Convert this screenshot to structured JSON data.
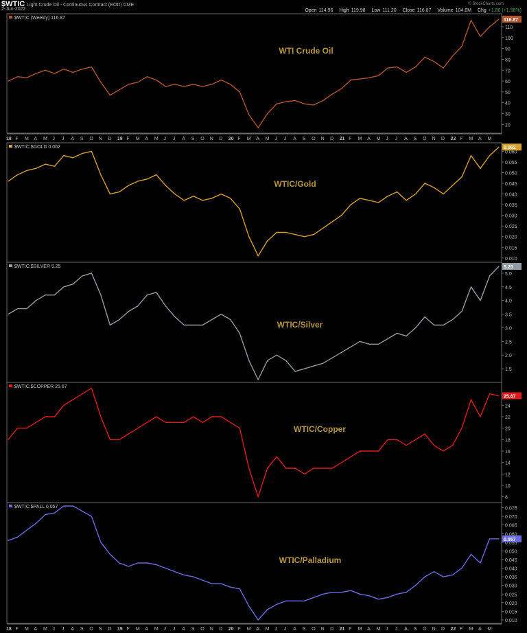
{
  "header": {
    "symbol": "$WTIC",
    "description": "Light Crude Oil - Continuous Contract (EOD)",
    "exchange": "CME",
    "date": "2-Jun-2022",
    "brand": "© StockCharts.com",
    "open_label": "Open",
    "open": "114.96",
    "high_label": "High",
    "high": "119.98",
    "low_label": "Low",
    "low": "111.20",
    "close_label": "Close",
    "close": "116.87",
    "volume_label": "Volume",
    "volume": "104.6M",
    "chg_label": "Chg",
    "chg": "+1.80 (+1.56%)"
  },
  "colors": {
    "background": "#000000",
    "border": "#6e6e6e",
    "tick_text": "#bdbdbd",
    "annotation": "#b8963c"
  },
  "x_axis_labels": [
    "18",
    "F",
    "M",
    "A",
    "M",
    "J",
    "J",
    "A",
    "S",
    "O",
    "N",
    "D",
    "19",
    "F",
    "M",
    "A",
    "M",
    "J",
    "J",
    "A",
    "S",
    "O",
    "N",
    "D",
    "20",
    "F",
    "M",
    "A",
    "M",
    "J",
    "J",
    "A",
    "S",
    "O",
    "N",
    "D",
    "21",
    "F",
    "M",
    "A",
    "M",
    "J",
    "J",
    "A",
    "S",
    "O",
    "N",
    "D",
    "22",
    "F",
    "M",
    "A",
    "M"
  ],
  "chart_data": [
    {
      "type": "line",
      "legend": "$WTIC (Weekly) 116.87",
      "annotation": "WTI Crude Oil",
      "last_value": "116.87",
      "color": "#b3552d",
      "ylim": [
        12,
        122
      ],
      "yticks": [
        "110",
        "100",
        "90",
        "80",
        "70",
        "60",
        "50",
        "40",
        "30",
        "20"
      ],
      "ytick_values": [
        110,
        100,
        90,
        80,
        70,
        60,
        50,
        40,
        30,
        20
      ],
      "x": [
        "2018-01",
        "2018-02",
        "2018-03",
        "2018-04",
        "2018-05",
        "2018-06",
        "2018-07",
        "2018-08",
        "2018-09",
        "2018-10",
        "2018-11",
        "2018-12",
        "2019-01",
        "2019-02",
        "2019-03",
        "2019-04",
        "2019-05",
        "2019-06",
        "2019-07",
        "2019-08",
        "2019-09",
        "2019-10",
        "2019-11",
        "2019-12",
        "2020-01",
        "2020-02",
        "2020-03",
        "2020-04",
        "2020-05",
        "2020-06",
        "2020-07",
        "2020-08",
        "2020-09",
        "2020-10",
        "2020-11",
        "2020-12",
        "2021-01",
        "2021-02",
        "2021-03",
        "2021-04",
        "2021-05",
        "2021-06",
        "2021-07",
        "2021-08",
        "2021-09",
        "2021-10",
        "2021-11",
        "2021-12",
        "2022-01",
        "2022-02",
        "2022-03",
        "2022-04",
        "2022-05",
        "2022-06"
      ],
      "values": [
        60,
        64,
        63,
        67,
        70,
        67,
        71,
        68,
        71,
        73,
        59,
        47,
        52,
        57,
        59,
        64,
        61,
        55,
        57,
        55,
        57,
        55,
        57,
        61,
        57,
        50,
        29,
        17,
        30,
        39,
        41,
        42,
        39,
        38,
        42,
        48,
        53,
        61,
        62,
        63,
        65,
        72,
        73,
        68,
        73,
        82,
        78,
        72,
        83,
        92,
        116,
        101,
        110,
        117
      ]
    },
    {
      "type": "line",
      "legend": "$WTIC:$GOLD 0.062",
      "annotation": "WTIC/Gold",
      "last_value": "0.062",
      "color": "#d8a12b",
      "ylim": [
        0.008,
        0.064
      ],
      "yticks": [
        "0.060",
        "0.055",
        "0.050",
        "0.045",
        "0.040",
        "0.035",
        "0.030",
        "0.025",
        "0.020",
        "0.015",
        "0.010"
      ],
      "ytick_values": [
        0.06,
        0.055,
        0.05,
        0.045,
        0.04,
        0.035,
        0.03,
        0.025,
        0.02,
        0.015,
        0.01
      ],
      "x": [
        "2018-01",
        "2018-02",
        "2018-03",
        "2018-04",
        "2018-05",
        "2018-06",
        "2018-07",
        "2018-08",
        "2018-09",
        "2018-10",
        "2018-11",
        "2018-12",
        "2019-01",
        "2019-02",
        "2019-03",
        "2019-04",
        "2019-05",
        "2019-06",
        "2019-07",
        "2019-08",
        "2019-09",
        "2019-10",
        "2019-11",
        "2019-12",
        "2020-01",
        "2020-02",
        "2020-03",
        "2020-04",
        "2020-05",
        "2020-06",
        "2020-07",
        "2020-08",
        "2020-09",
        "2020-10",
        "2020-11",
        "2020-12",
        "2021-01",
        "2021-02",
        "2021-03",
        "2021-04",
        "2021-05",
        "2021-06",
        "2021-07",
        "2021-08",
        "2021-09",
        "2021-10",
        "2021-11",
        "2021-12",
        "2022-01",
        "2022-02",
        "2022-03",
        "2022-04",
        "2022-05",
        "2022-06"
      ],
      "values": [
        0.046,
        0.049,
        0.051,
        0.052,
        0.054,
        0.053,
        0.058,
        0.057,
        0.059,
        0.06,
        0.049,
        0.04,
        0.041,
        0.044,
        0.046,
        0.047,
        0.049,
        0.044,
        0.04,
        0.037,
        0.039,
        0.037,
        0.038,
        0.04,
        0.038,
        0.033,
        0.02,
        0.011,
        0.018,
        0.022,
        0.022,
        0.021,
        0.02,
        0.021,
        0.024,
        0.027,
        0.03,
        0.035,
        0.038,
        0.037,
        0.036,
        0.039,
        0.041,
        0.037,
        0.04,
        0.045,
        0.043,
        0.04,
        0.044,
        0.048,
        0.058,
        0.052,
        0.058,
        0.062
      ]
    },
    {
      "type": "line",
      "legend": "$WTIC:$SILVER 5.25",
      "annotation": "WTIC/Silver",
      "last_value": "5.25",
      "color": "#8f9da3",
      "ylim": [
        1.0,
        5.4
      ],
      "yticks": [
        "5.0",
        "4.5",
        "4.0",
        "3.5",
        "3.0",
        "2.5",
        "2.0",
        "1.5"
      ],
      "ytick_values": [
        5.0,
        4.5,
        4.0,
        3.5,
        3.0,
        2.5,
        2.0,
        1.5
      ],
      "x": [
        "2018-01",
        "2018-02",
        "2018-03",
        "2018-04",
        "2018-05",
        "2018-06",
        "2018-07",
        "2018-08",
        "2018-09",
        "2018-10",
        "2018-11",
        "2018-12",
        "2019-01",
        "2019-02",
        "2019-03",
        "2019-04",
        "2019-05",
        "2019-06",
        "2019-07",
        "2019-08",
        "2019-09",
        "2019-10",
        "2019-11",
        "2019-12",
        "2020-01",
        "2020-02",
        "2020-03",
        "2020-04",
        "2020-05",
        "2020-06",
        "2020-07",
        "2020-08",
        "2020-09",
        "2020-10",
        "2020-11",
        "2020-12",
        "2021-01",
        "2021-02",
        "2021-03",
        "2021-04",
        "2021-05",
        "2021-06",
        "2021-07",
        "2021-08",
        "2021-09",
        "2021-10",
        "2021-11",
        "2021-12",
        "2022-01",
        "2022-02",
        "2022-03",
        "2022-04",
        "2022-05",
        "2022-06"
      ],
      "values": [
        3.5,
        3.7,
        3.7,
        4.0,
        4.2,
        4.2,
        4.5,
        4.6,
        4.9,
        5.0,
        4.2,
        3.1,
        3.3,
        3.6,
        3.8,
        4.2,
        4.3,
        3.8,
        3.4,
        3.1,
        3.1,
        3.1,
        3.3,
        3.5,
        3.3,
        2.8,
        1.8,
        1.1,
        1.8,
        2.0,
        1.8,
        1.4,
        1.5,
        1.6,
        1.7,
        1.9,
        2.1,
        2.3,
        2.5,
        2.4,
        2.4,
        2.6,
        2.8,
        2.7,
        3.0,
        3.4,
        3.1,
        3.1,
        3.3,
        3.6,
        4.5,
        4.0,
        4.9,
        5.25
      ]
    },
    {
      "type": "line",
      "legend": "$WTIC:$COPPER 25.67",
      "annotation": "WTIC/Copper",
      "last_value": "25.67",
      "color": "#e01b1b",
      "ylim": [
        7,
        28
      ],
      "yticks": [
        "24",
        "22",
        "20",
        "18",
        "16",
        "14",
        "12",
        "10",
        "8"
      ],
      "ytick_values": [
        24,
        22,
        20,
        18,
        16,
        14,
        12,
        10,
        8
      ],
      "x": [
        "2018-01",
        "2018-02",
        "2018-03",
        "2018-04",
        "2018-05",
        "2018-06",
        "2018-07",
        "2018-08",
        "2018-09",
        "2018-10",
        "2018-11",
        "2018-12",
        "2019-01",
        "2019-02",
        "2019-03",
        "2019-04",
        "2019-05",
        "2019-06",
        "2019-07",
        "2019-08",
        "2019-09",
        "2019-10",
        "2019-11",
        "2019-12",
        "2020-01",
        "2020-02",
        "2020-03",
        "2020-04",
        "2020-05",
        "2020-06",
        "2020-07",
        "2020-08",
        "2020-09",
        "2020-10",
        "2020-11",
        "2020-12",
        "2021-01",
        "2021-02",
        "2021-03",
        "2021-04",
        "2021-05",
        "2021-06",
        "2021-07",
        "2021-08",
        "2021-09",
        "2021-10",
        "2021-11",
        "2021-12",
        "2022-01",
        "2022-02",
        "2022-03",
        "2022-04",
        "2022-05",
        "2022-06"
      ],
      "values": [
        18,
        20,
        20,
        21,
        22,
        22,
        24,
        25,
        26,
        27,
        22,
        18,
        18,
        19,
        20,
        21,
        22,
        21,
        21,
        21,
        22,
        21,
        22,
        22,
        21,
        20,
        13,
        8,
        13,
        15,
        13,
        13,
        12,
        13,
        13,
        13,
        14,
        15,
        16,
        16,
        16,
        18,
        18,
        17,
        18,
        19,
        17,
        16,
        17,
        20,
        25,
        22,
        26,
        25.67
      ]
    },
    {
      "type": "line",
      "legend": "$WTIC:$PALL 0.057",
      "annotation": "WTIC/Palladium",
      "last_value": "0.057",
      "color": "#6b6be0",
      "ylim": [
        0.008,
        0.078
      ],
      "yticks": [
        "0.075",
        "0.070",
        "0.065",
        "0.060",
        "0.055",
        "0.050",
        "0.045",
        "0.040",
        "0.035",
        "0.030",
        "0.025",
        "0.020",
        "0.015",
        "0.010"
      ],
      "ytick_values": [
        0.075,
        0.07,
        0.065,
        0.06,
        0.055,
        0.05,
        0.045,
        0.04,
        0.035,
        0.03,
        0.025,
        0.02,
        0.015,
        0.01
      ],
      "x": [
        "2018-01",
        "2018-02",
        "2018-03",
        "2018-04",
        "2018-05",
        "2018-06",
        "2018-07",
        "2018-08",
        "2018-09",
        "2018-10",
        "2018-11",
        "2018-12",
        "2019-01",
        "2019-02",
        "2019-03",
        "2019-04",
        "2019-05",
        "2019-06",
        "2019-07",
        "2019-08",
        "2019-09",
        "2019-10",
        "2019-11",
        "2019-12",
        "2020-01",
        "2020-02",
        "2020-03",
        "2020-04",
        "2020-05",
        "2020-06",
        "2020-07",
        "2020-08",
        "2020-09",
        "2020-10",
        "2020-11",
        "2020-12",
        "2021-01",
        "2021-02",
        "2021-03",
        "2021-04",
        "2021-05",
        "2021-06",
        "2021-07",
        "2021-08",
        "2021-09",
        "2021-10",
        "2021-11",
        "2021-12",
        "2022-01",
        "2022-02",
        "2022-03",
        "2022-04",
        "2022-05",
        "2022-06"
      ],
      "values": [
        0.056,
        0.058,
        0.062,
        0.066,
        0.071,
        0.072,
        0.076,
        0.076,
        0.073,
        0.07,
        0.055,
        0.048,
        0.043,
        0.041,
        0.043,
        0.043,
        0.042,
        0.04,
        0.038,
        0.036,
        0.035,
        0.033,
        0.031,
        0.031,
        0.029,
        0.028,
        0.018,
        0.01,
        0.016,
        0.019,
        0.021,
        0.021,
        0.021,
        0.023,
        0.025,
        0.026,
        0.026,
        0.027,
        0.025,
        0.024,
        0.022,
        0.023,
        0.025,
        0.026,
        0.03,
        0.035,
        0.038,
        0.035,
        0.036,
        0.04,
        0.048,
        0.043,
        0.057,
        0.057
      ]
    }
  ]
}
